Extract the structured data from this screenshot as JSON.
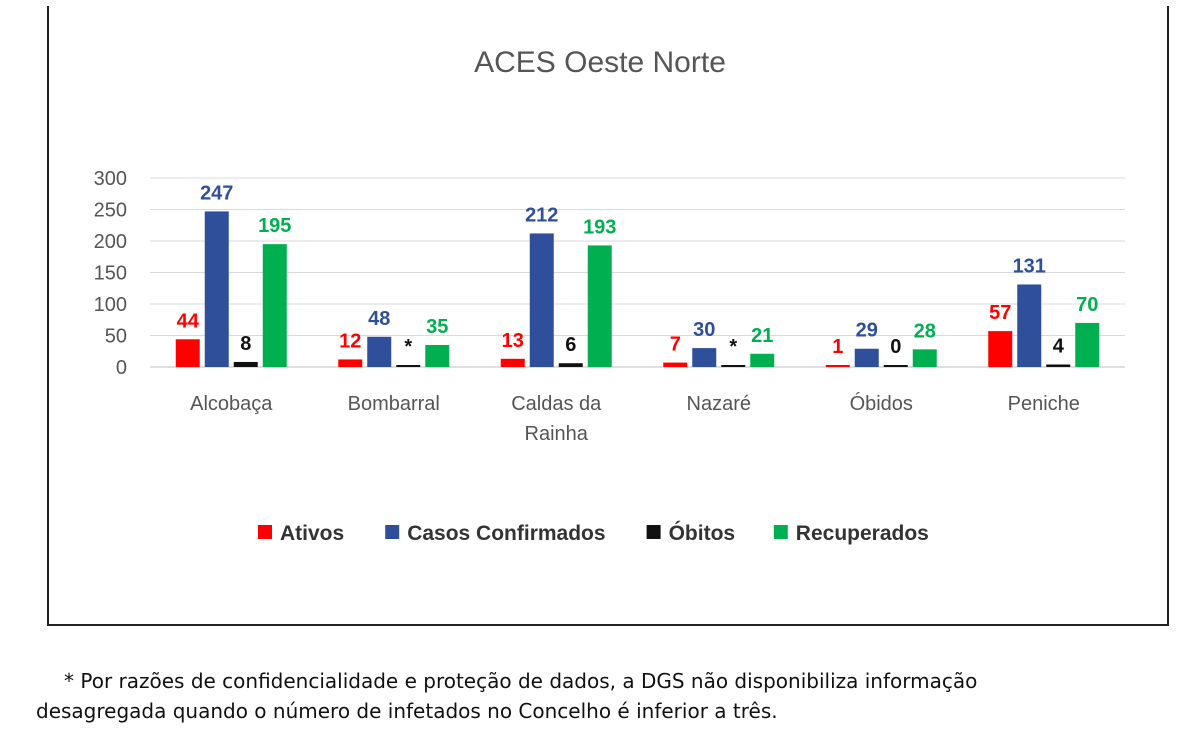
{
  "chart_data": {
    "type": "bar",
    "title": "ACES Oeste Norte",
    "categories": [
      "Alcobaça",
      "Bombarral",
      "Caldas da Rainha",
      "Nazaré",
      "Óbidos",
      "Peniche"
    ],
    "category_lines": [
      [
        "Alcobaça"
      ],
      [
        "Bombarral"
      ],
      [
        "Caldas da",
        "Rainha"
      ],
      [
        "Nazaré"
      ],
      [
        "Óbidos"
      ],
      [
        "Peniche"
      ]
    ],
    "yticks": [
      "0",
      "50",
      "100",
      "150",
      "200",
      "250",
      "300"
    ],
    "ylim": [
      0,
      300
    ],
    "grid": true,
    "legend_position": "bottom",
    "series": [
      {
        "name": "Ativos",
        "color": "#ff0000",
        "values": [
          44,
          12,
          13,
          7,
          1,
          57
        ],
        "labels": [
          "44",
          "12",
          "13",
          "7",
          "1",
          "57"
        ]
      },
      {
        "name": "Casos Confirmados",
        "color": "#2f4f9a",
        "values": [
          247,
          48,
          212,
          30,
          29,
          131
        ],
        "labels": [
          "247",
          "48",
          "212",
          "30",
          "29",
          "131"
        ]
      },
      {
        "name": "Óbitos",
        "color": "#111111",
        "values": [
          8,
          0,
          6,
          0,
          0,
          4
        ],
        "labels": [
          "8",
          "*",
          "6",
          "*",
          "0",
          "4"
        ]
      },
      {
        "name": "Recuperados",
        "color": "#00b050",
        "values": [
          195,
          35,
          193,
          21,
          28,
          70
        ],
        "labels": [
          "195",
          "35",
          "193",
          "21",
          "28",
          "70"
        ]
      }
    ]
  },
  "footnote": {
    "line1": "* Por razões de confidencialidade e proteção de dados, a DGS não disponibiliza informação",
    "line2": "desagregada quando o número de infetados no Concelho é inferior a três."
  }
}
